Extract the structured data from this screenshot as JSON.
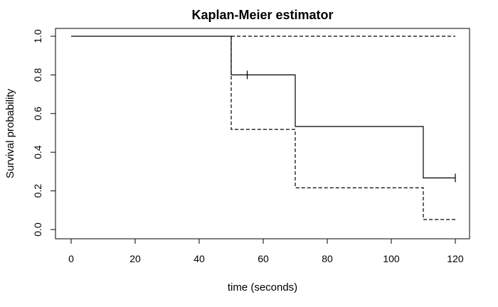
{
  "chart_data": {
    "type": "line",
    "title": "Kaplan-Meier estimator",
    "xlabel": "time (seconds)",
    "ylabel": "Survival probability",
    "xlim": [
      0,
      120
    ],
    "ylim": [
      0,
      1
    ],
    "x_ticks": [
      0,
      20,
      40,
      60,
      80,
      100,
      120
    ],
    "y_ticks": [
      0.0,
      0.2,
      0.4,
      0.6,
      0.8,
      1.0
    ],
    "y_tick_labels": [
      "0.0",
      "0.2",
      "0.4",
      "0.6",
      "0.8",
      "1.0"
    ],
    "grid": false,
    "legend": "none",
    "series": [
      {
        "style": "solid",
        "step": true,
        "points": [
          [
            0,
            1.0
          ],
          [
            50,
            1.0
          ],
          [
            50,
            0.8
          ],
          [
            70,
            0.8
          ],
          [
            70,
            0.533
          ],
          [
            110,
            0.533
          ],
          [
            110,
            0.267
          ],
          [
            120,
            0.267
          ]
        ],
        "censor_marks": [
          [
            55,
            0.8
          ],
          [
            120,
            0.267
          ]
        ]
      },
      {
        "style": "dashed",
        "step": true,
        "points": [
          [
            50,
            1.0
          ],
          [
            120,
            1.0
          ]
        ]
      },
      {
        "style": "dashed",
        "step": true,
        "points": [
          [
            50,
            1.0
          ],
          [
            50,
            0.518
          ],
          [
            70,
            0.518
          ],
          [
            70,
            0.216
          ],
          [
            110,
            0.216
          ],
          [
            110,
            0.052
          ],
          [
            120,
            0.052
          ]
        ]
      }
    ]
  }
}
